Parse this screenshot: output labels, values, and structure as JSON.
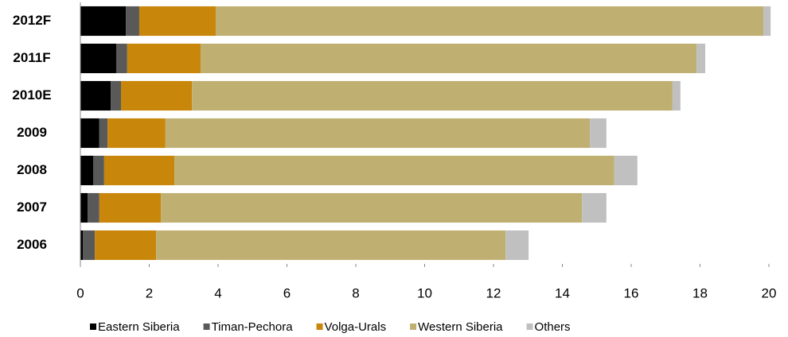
{
  "chart_data": {
    "type": "bar",
    "orientation": "horizontal",
    "stacked": true,
    "categories": [
      "2012F",
      "2011F",
      "2010E",
      "2009",
      "2008",
      "2007",
      "2006"
    ],
    "series": [
      {
        "name": "Eastern Siberia",
        "color": "#000000",
        "values": [
          1.32,
          1.04,
          0.88,
          0.55,
          0.37,
          0.21,
          0.07
        ]
      },
      {
        "name": "Timan-Pechora",
        "color": "#595959",
        "values": [
          0.39,
          0.32,
          0.3,
          0.24,
          0.32,
          0.34,
          0.35
        ]
      },
      {
        "name": "Volga-Urals",
        "color": "#c8860a",
        "values": [
          2.22,
          2.13,
          2.06,
          1.68,
          2.04,
          1.79,
          1.78
        ]
      },
      {
        "name": "Western Siberia",
        "color": "#bfb072",
        "values": [
          15.91,
          14.41,
          13.96,
          12.33,
          12.78,
          12.23,
          10.15
        ]
      },
      {
        "name": "Others",
        "color": "#c0c0c0",
        "values": [
          0.21,
          0.25,
          0.23,
          0.48,
          0.67,
          0.71,
          0.67
        ]
      }
    ],
    "xlim": [
      0,
      20
    ],
    "xticks": [
      0,
      2,
      4,
      6,
      8,
      10,
      12,
      14,
      16,
      18,
      20
    ],
    "legend": "bottom"
  }
}
